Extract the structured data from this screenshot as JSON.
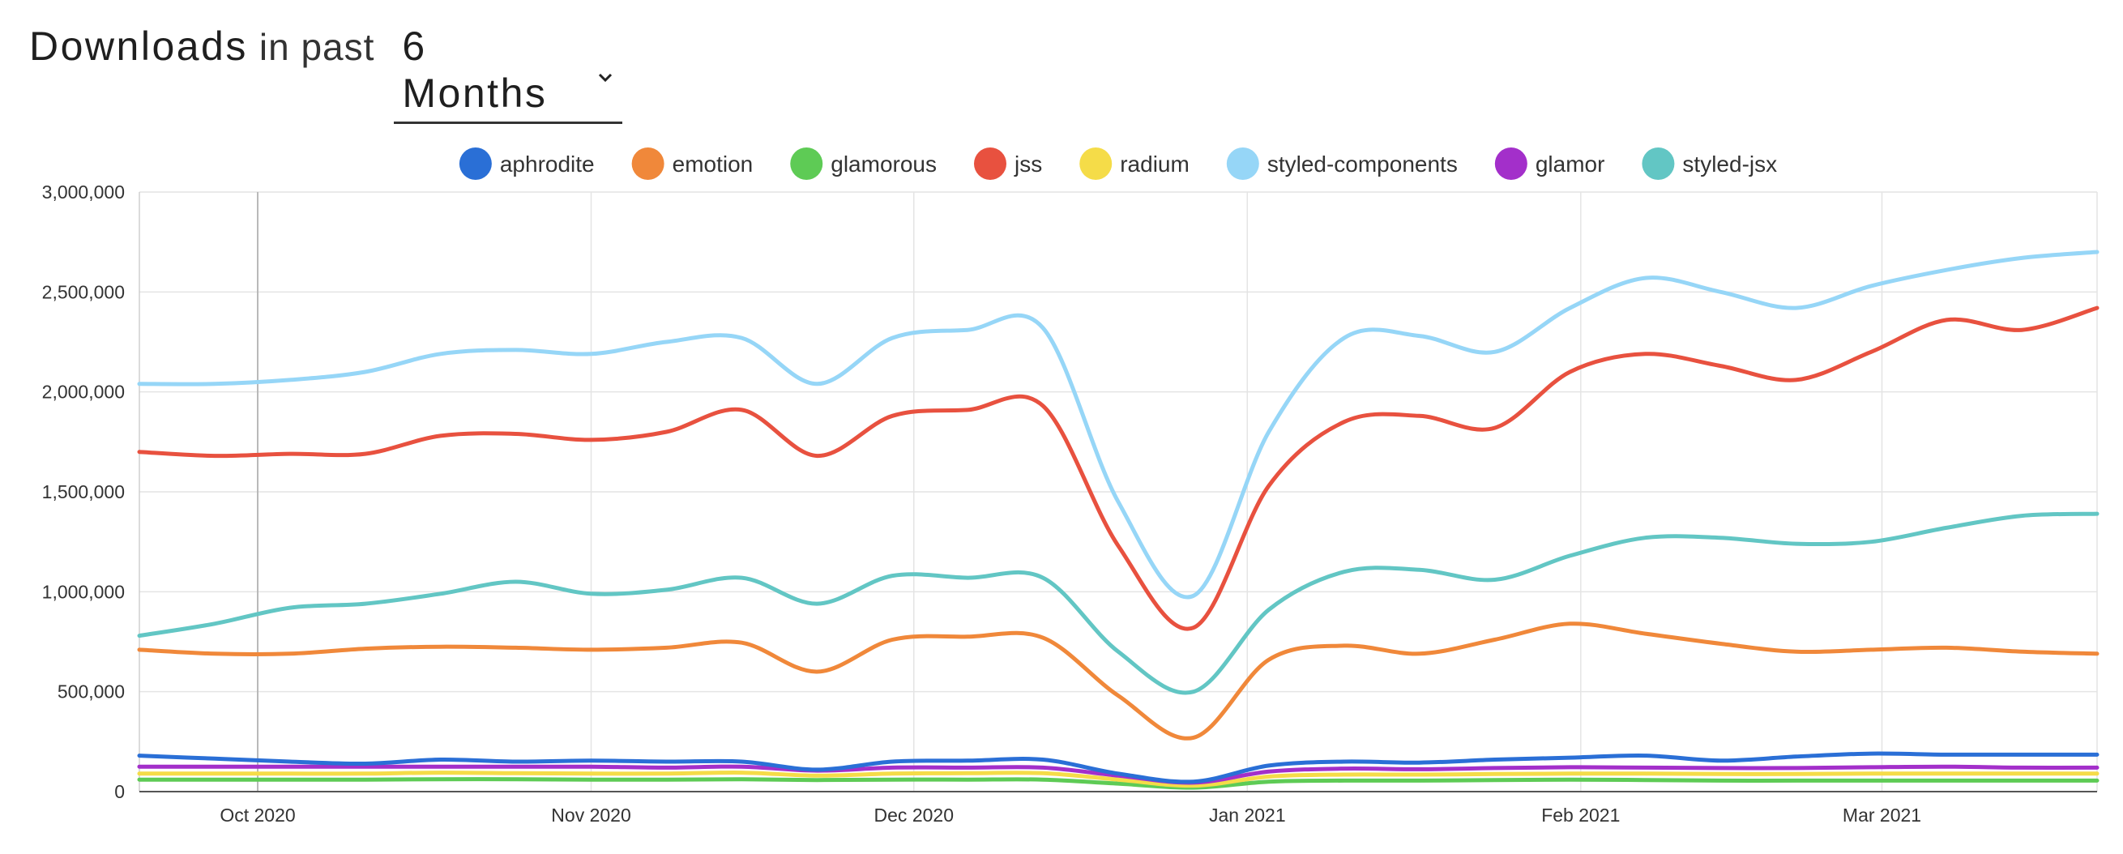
{
  "header": {
    "title": "Downloads",
    "subtitle": "in past",
    "period": "6 Months"
  },
  "chart_data": {
    "type": "line",
    "title": "Downloads in past 6 Months",
    "xlabel": "",
    "ylabel": "",
    "ylim": [
      0,
      3000000
    ],
    "x_start": "2020-09-20",
    "x_end": "2021-03-21",
    "x_ticks": [
      {
        "date": "2020-10-01",
        "label": "Oct 2020"
      },
      {
        "date": "2020-11-01",
        "label": "Nov 2020"
      },
      {
        "date": "2020-12-01",
        "label": "Dec 2020"
      },
      {
        "date": "2021-01-01",
        "label": "Jan 2021"
      },
      {
        "date": "2021-02-01",
        "label": "Feb 2021"
      },
      {
        "date": "2021-03-01",
        "label": "Mar 2021"
      }
    ],
    "y_ticks": [
      {
        "value": 0,
        "label": "0"
      },
      {
        "value": 500000,
        "label": "500,000"
      },
      {
        "value": 1000000,
        "label": "1,000,000"
      },
      {
        "value": 1500000,
        "label": "1,500,000"
      },
      {
        "value": 2000000,
        "label": "2,000,000"
      },
      {
        "value": 2500000,
        "label": "2,500,000"
      },
      {
        "value": 3000000,
        "label": "3,000,000"
      }
    ],
    "legend_position": "top-center",
    "grid": true,
    "x": [
      "2020-09-20",
      "2020-09-27",
      "2020-10-04",
      "2020-10-11",
      "2020-10-18",
      "2020-10-25",
      "2020-11-01",
      "2020-11-08",
      "2020-11-15",
      "2020-11-22",
      "2020-11-29",
      "2020-12-06",
      "2020-12-13",
      "2020-12-20",
      "2020-12-27",
      "2021-01-03",
      "2021-01-10",
      "2021-01-17",
      "2021-01-24",
      "2021-01-31",
      "2021-02-07",
      "2021-02-14",
      "2021-02-21",
      "2021-02-28",
      "2021-03-07",
      "2021-03-14",
      "2021-03-21"
    ],
    "series": [
      {
        "name": "aphrodite",
        "color": "#2a6fd6",
        "values": [
          180000,
          165000,
          150000,
          140000,
          160000,
          150000,
          155000,
          150000,
          150000,
          110000,
          150000,
          155000,
          160000,
          90000,
          50000,
          130000,
          150000,
          145000,
          160000,
          170000,
          180000,
          155000,
          175000,
          190000,
          185000,
          185000,
          185000
        ]
      },
      {
        "name": "emotion",
        "color": "#f0883a",
        "values": [
          710000,
          690000,
          690000,
          715000,
          725000,
          720000,
          710000,
          720000,
          745000,
          600000,
          760000,
          775000,
          770000,
          480000,
          270000,
          660000,
          730000,
          690000,
          760000,
          840000,
          790000,
          740000,
          700000,
          710000,
          720000,
          700000,
          690000
        ]
      },
      {
        "name": "glamorous",
        "color": "#5ecb55",
        "values": [
          60000,
          60000,
          60000,
          60000,
          62000,
          62000,
          60000,
          60000,
          62000,
          58000,
          60000,
          60000,
          60000,
          40000,
          20000,
          50000,
          55000,
          55000,
          58000,
          60000,
          58000,
          55000,
          55000,
          55000,
          55000,
          55000,
          55000
        ]
      },
      {
        "name": "jss",
        "color": "#e8513f",
        "values": [
          1700000,
          1680000,
          1690000,
          1690000,
          1780000,
          1790000,
          1760000,
          1800000,
          1910000,
          1680000,
          1880000,
          1910000,
          1930000,
          1230000,
          820000,
          1530000,
          1850000,
          1880000,
          1820000,
          2100000,
          2190000,
          2130000,
          2060000,
          2200000,
          2360000,
          2310000,
          2420000
        ]
      },
      {
        "name": "radium",
        "color": "#f5dc48",
        "values": [
          90000,
          90000,
          90000,
          90000,
          95000,
          92000,
          90000,
          90000,
          95000,
          80000,
          90000,
          92000,
          92000,
          60000,
          30000,
          75000,
          85000,
          85000,
          88000,
          90000,
          90000,
          88000,
          88000,
          90000,
          90000,
          90000,
          90000
        ]
      },
      {
        "name": "styled-components",
        "color": "#96d6f7",
        "values": [
          2040000,
          2040000,
          2060000,
          2100000,
          2190000,
          2210000,
          2190000,
          2250000,
          2270000,
          2040000,
          2270000,
          2310000,
          2320000,
          1450000,
          980000,
          1800000,
          2270000,
          2280000,
          2200000,
          2420000,
          2570000,
          2500000,
          2420000,
          2530000,
          2610000,
          2670000,
          2700000
        ]
      },
      {
        "name": "glamor",
        "color": "#a32fca",
        "values": [
          125000,
          125000,
          125000,
          125000,
          125000,
          125000,
          125000,
          120000,
          125000,
          105000,
          120000,
          120000,
          120000,
          80000,
          45000,
          100000,
          115000,
          112000,
          118000,
          122000,
          120000,
          118000,
          118000,
          122000,
          125000,
          120000,
          120000
        ]
      },
      {
        "name": "styled-jsx",
        "color": "#62c6c4",
        "values": [
          780000,
          840000,
          920000,
          940000,
          990000,
          1050000,
          990000,
          1010000,
          1070000,
          940000,
          1080000,
          1070000,
          1070000,
          700000,
          500000,
          910000,
          1100000,
          1110000,
          1060000,
          1180000,
          1270000,
          1270000,
          1240000,
          1250000,
          1320000,
          1380000,
          1390000
        ]
      }
    ]
  }
}
